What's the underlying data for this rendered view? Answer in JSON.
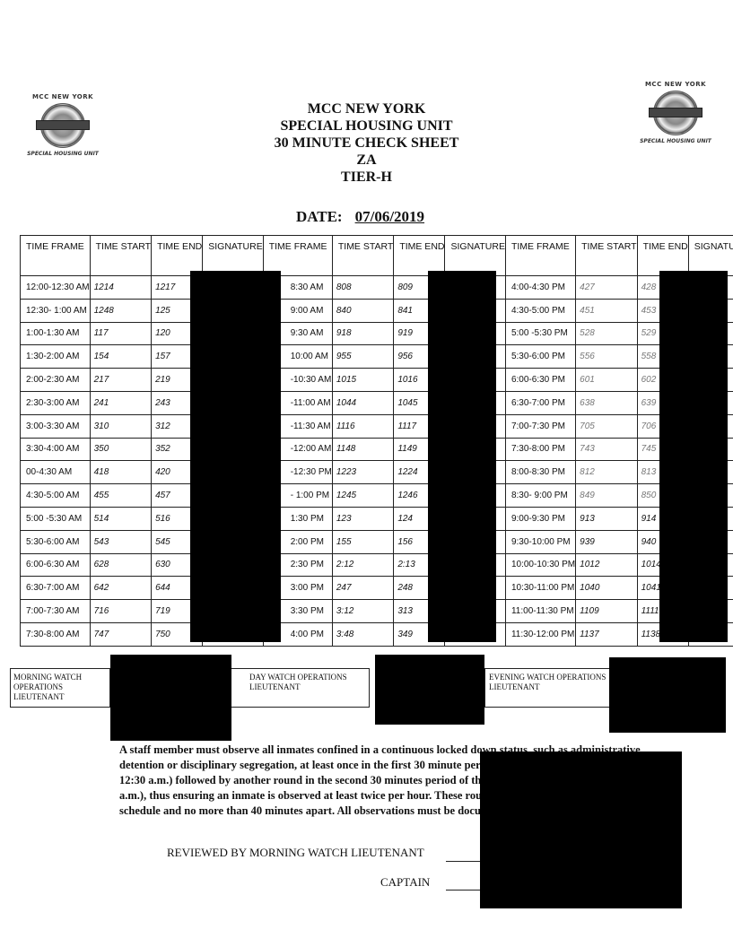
{
  "logos": {
    "top": "MCC NEW YORK",
    "bottom": "SPECIAL HOUSING UNIT"
  },
  "header": {
    "lines": [
      "MCC NEW YORK",
      "SPECIAL HOUSING UNIT",
      "30 MINUTE CHECK SHEET",
      "ZA",
      "TIER-H"
    ]
  },
  "date": {
    "label": "DATE:",
    "value": "07/06/2019"
  },
  "table": {
    "headers": [
      "TIME FRAME",
      "TIME START",
      "TIME END",
      "SIGNATURE"
    ],
    "morning": [
      [
        "12:00-12:30 AM",
        "1214",
        "1217"
      ],
      [
        "12:30- 1:00 AM",
        "1248",
        "125"
      ],
      [
        "1:00-1:30 AM",
        "117",
        "120"
      ],
      [
        "1:30-2:00 AM",
        "154",
        "157"
      ],
      [
        "2:00-2:30 AM",
        "217",
        "219"
      ],
      [
        "2:30-3:00 AM",
        "241",
        "243"
      ],
      [
        "3:00-3:30 AM",
        "310",
        "312"
      ],
      [
        "3:30-4:00 AM",
        "350",
        "352"
      ],
      [
        "00-4:30 AM",
        "418",
        "420"
      ],
      [
        "4:30-5:00 AM",
        "455",
        "457"
      ],
      [
        "5:00 -5:30 AM",
        "514",
        "516"
      ],
      [
        "5:30-6:00 AM",
        "543",
        "545"
      ],
      [
        "6:00-6:30 AM",
        "628",
        "630"
      ],
      [
        "6:30-7:00 AM",
        "642",
        "644"
      ],
      [
        "7:00-7:30 AM",
        "716",
        "719"
      ],
      [
        "7:30-8:00 AM",
        "747",
        "750"
      ]
    ],
    "day": [
      [
        "8:30 AM",
        "808",
        "809"
      ],
      [
        "9:00 AM",
        "840",
        "841"
      ],
      [
        "9:30 AM",
        "918",
        "919"
      ],
      [
        "10:00 AM",
        "955",
        "956"
      ],
      [
        "-10:30 AM",
        "1015",
        "1016"
      ],
      [
        "-11:00 AM",
        "1044",
        "1045"
      ],
      [
        "-11:30 AM",
        "1116",
        "1117"
      ],
      [
        "-12:00 AM",
        "1148",
        "1149"
      ],
      [
        "-12:30 PM",
        "1223",
        "1224"
      ],
      [
        "- 1:00 PM",
        "1245",
        "1246"
      ],
      [
        "1:30 PM",
        "123",
        "124"
      ],
      [
        "2:00 PM",
        "155",
        "156"
      ],
      [
        "2:30 PM",
        "2:12",
        "2:13"
      ],
      [
        "3:00 PM",
        "247",
        "248"
      ],
      [
        "3:30 PM",
        "3:12",
        "313"
      ],
      [
        "4:00 PM",
        "3:48",
        "349"
      ]
    ],
    "evening": [
      [
        "4:00-4:30 PM",
        "427",
        "428"
      ],
      [
        "4:30-5:00 PM",
        "451",
        "453"
      ],
      [
        "5:00 -5:30 PM",
        "528",
        "529"
      ],
      [
        "5:30-6:00 PM",
        "556",
        "558"
      ],
      [
        "6:00-6:30 PM",
        "601",
        "602"
      ],
      [
        "6:30-7:00 PM",
        "638",
        "639"
      ],
      [
        "7:00-7:30 PM",
        "705",
        "706"
      ],
      [
        "7:30-8:00 PM",
        "743",
        "745"
      ],
      [
        "8:00-8:30 PM",
        "812",
        "813"
      ],
      [
        "8:30- 9:00 PM",
        "849",
        "850"
      ],
      [
        "9:00-9:30 PM",
        "913",
        "914"
      ],
      [
        "9:30-10:00 PM",
        "939",
        "940"
      ],
      [
        "10:00-10:30 PM",
        "1012",
        "1014"
      ],
      [
        "10:30-11:00 PM",
        "1040",
        "1041"
      ],
      [
        "11:00-11:30 PM",
        "1109",
        "1111"
      ],
      [
        "11:30-12:00 PM",
        "1137",
        "1138"
      ]
    ]
  },
  "watch": {
    "morning": "MORNING WATCH OPERATIONS LIEUTENANT",
    "day": "DAY WATCH OPERATIONS LIEUTENANT",
    "evening": "EVENING WATCH OPERATIONS LIEUTENANT"
  },
  "instructions": "A staff member must observe all inmates confined in a continuous locked down status, such as administrative detention or disciplinary segregation, at least once in the first 30 minute period of the hour (example, 12:00 a.m. – 12:30 a.m.) followed by another round in the second 30 minutes period of the same hour (example, 12:30 am – 1:00 a.m.), thus ensuring an inmate is observed at least twice per hour. These rounds are to be conducted on an irregular schedule and no more than 40 minutes apart. All observations must be documented.",
  "signoff": {
    "reviewed": "REVIEWED BY MORNING WATCH LIEUTENANT",
    "captain": "CAPTAIN"
  },
  "colors": {
    "ink": "#111111",
    "redaction": "#000000",
    "pencil": "#777777"
  }
}
